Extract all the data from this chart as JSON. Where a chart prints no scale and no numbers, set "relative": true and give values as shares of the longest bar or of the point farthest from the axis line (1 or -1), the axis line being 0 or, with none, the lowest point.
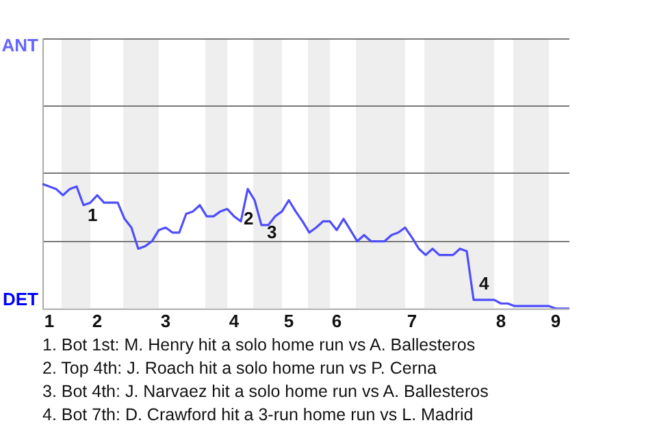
{
  "chart_data": {
    "type": "line",
    "relative": true,
    "categories": [
      null,
      "1",
      null,
      null,
      null,
      null,
      null,
      null,
      "2",
      null,
      null,
      null,
      null,
      null,
      null,
      null,
      null,
      null,
      "3",
      null,
      null,
      null,
      null,
      null,
      null,
      null,
      null,
      null,
      "4",
      null,
      null,
      null,
      null,
      null,
      null,
      null,
      "5",
      null,
      null,
      null,
      null,
      null,
      null,
      "6",
      null,
      null,
      null,
      null,
      null,
      null,
      null,
      null,
      null,
      null,
      "7",
      null,
      null,
      null,
      null,
      null,
      null,
      null,
      null,
      null,
      null,
      null,
      null,
      "8",
      null,
      null,
      null,
      null,
      null,
      null,
      null,
      "9",
      null,
      null
    ],
    "series": [
      {
        "color": "#4d4dff",
        "values": [
          1,
          0.98,
          0.96,
          0.91,
          0.96,
          0.98,
          0.83,
          0.85,
          0.91,
          0.85,
          0.85,
          0.85,
          0.72,
          0.65,
          0.48,
          0.5,
          0.54,
          0.63,
          0.65,
          0.61,
          0.61,
          0.76,
          0.78,
          0.83,
          0.74,
          0.74,
          0.78,
          0.8,
          0.74,
          0.7,
          0.96,
          0.87,
          0.67,
          0.67,
          0.74,
          0.78,
          0.87,
          0.78,
          0.7,
          0.61,
          0.65,
          0.7,
          0.7,
          0.63,
          0.72,
          0.63,
          0.54,
          0.59,
          0.54,
          0.54,
          0.54,
          0.59,
          0.61,
          0.65,
          0.57,
          0.48,
          0.43,
          0.48,
          0.43,
          0.43,
          0.43,
          0.48,
          0.46,
          0.07,
          0.07,
          0.07,
          0.07,
          0.04,
          0.04,
          0.02,
          0.02,
          0.02,
          0.02,
          0.02,
          0.02,
          0,
          0,
          0
        ]
      }
    ],
    "ref_lines": [
      {
        "axis": "y",
        "value": 0.54,
        "color": "#777777"
      },
      {
        "axis": "y",
        "value": 1.09,
        "color": "#777777"
      },
      {
        "axis": "y",
        "value": 1.63,
        "color": "#777777"
      }
    ],
    "annotations": [
      "ANT",
      "DET",
      "1",
      "2",
      "3",
      "4",
      "1. Bot 1st: M. Henry hit a solo home run vs A. Ballesteros",
      "2. Top 4th: J. Roach hit a solo home run vs P. Cerna",
      "3. Bot 4th: J. Narvaez hit a solo home run vs A. Ballesteros",
      "4. Bot 7th: D. Crawford hit a 3-run home run vs L. Madrid"
    ]
  }
}
